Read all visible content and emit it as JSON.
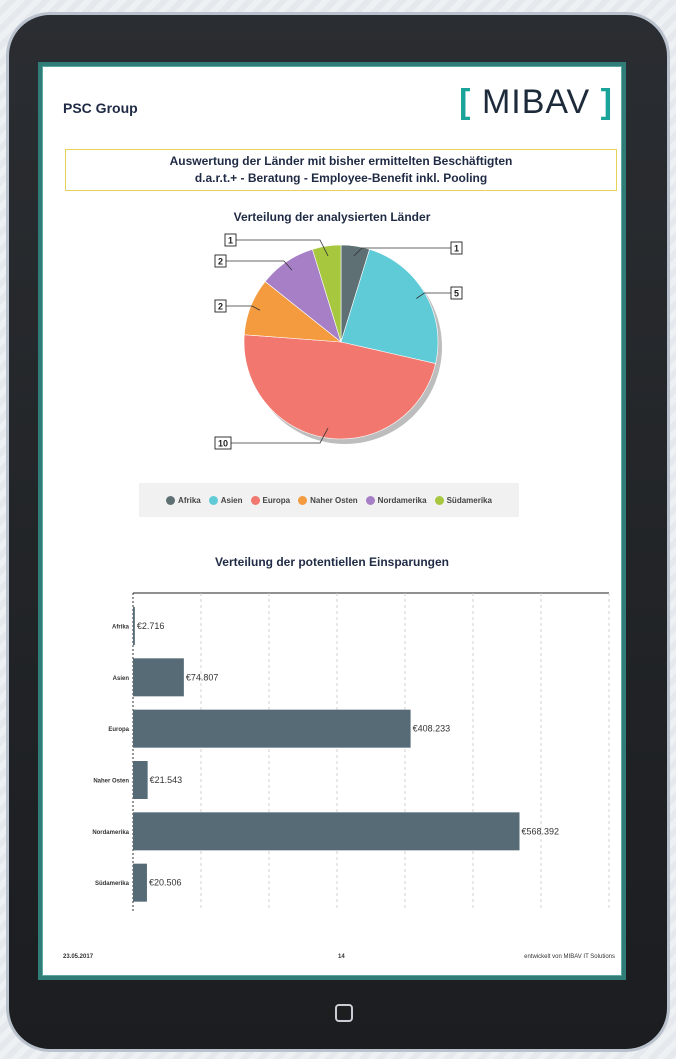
{
  "header": {
    "group_name": "PSC Group",
    "logo_left_bracket": "[",
    "logo_text": "MIBAV",
    "logo_right_bracket": "]",
    "title_line1": "Auswertung der Länder mit bisher ermittelten Beschäftigten",
    "title_line2": "d.a.r.t.+ - Beratung - Employee-Benefit inkl. Pooling"
  },
  "chart_data": [
    {
      "type": "pie",
      "title": "Verteilung der analysierten Länder",
      "categories": [
        "Afrika",
        "Asien",
        "Europa",
        "Naher Osten",
        "Nordamerika",
        "Südamerika"
      ],
      "values": [
        1,
        5,
        10,
        2,
        2,
        1
      ],
      "colors": [
        "#5e7074",
        "#5fcbd7",
        "#f2786f",
        "#f49a3f",
        "#a77fc6",
        "#a6c73e"
      ],
      "data_labels": [
        "1",
        "5",
        "10",
        "2",
        "2",
        "1"
      ],
      "legend_position": "bottom"
    },
    {
      "type": "bar",
      "orientation": "horizontal",
      "title": "Verteilung der potentiellen Einsparungen",
      "categories": [
        "Afrika",
        "Asien",
        "Europa",
        "Naher Osten",
        "Nordamerika",
        "Südamerika"
      ],
      "values": [
        2716,
        74807,
        408233,
        21543,
        568392,
        20506
      ],
      "data_labels": [
        "€2.716",
        "€74.807",
        "€408.233",
        "€21.543",
        "€568.392",
        "€20.506"
      ],
      "color": "#566b76",
      "xlim": [
        0,
        700000
      ],
      "grid": true
    }
  ],
  "footer": {
    "date": "23.05.2017",
    "page_number": "14",
    "credit": "entwickelt von MIBAV IT Solutions"
  }
}
